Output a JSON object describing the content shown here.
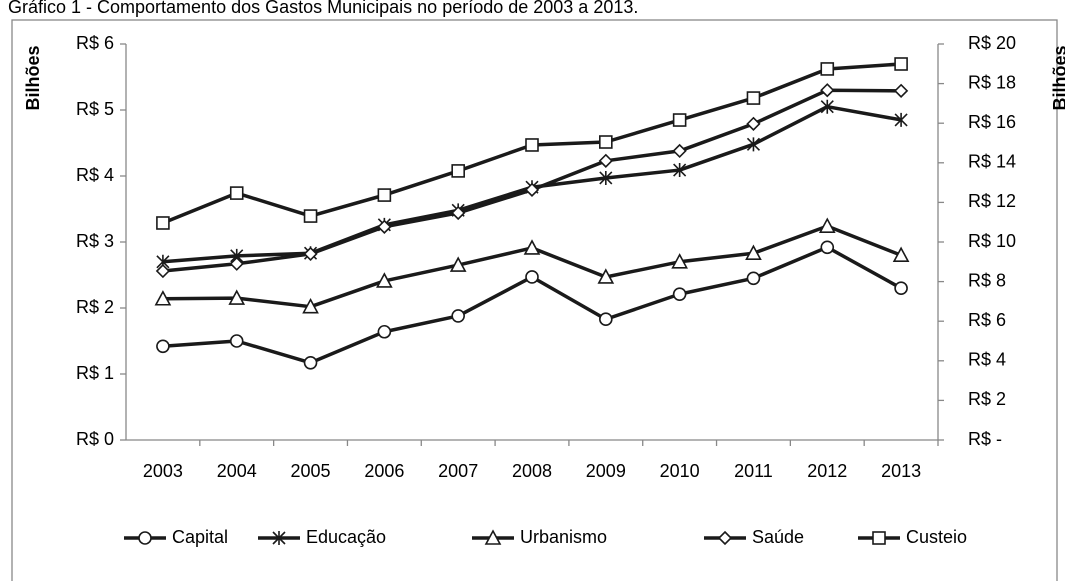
{
  "chart_data": {
    "type": "line",
    "title": "Gráfico 1 - Comportamento dos Gastos Municipais no período de 2003 a 2013.",
    "ylabel": "Bilhões",
    "y2label": "Bilhões",
    "categories": [
      "2003",
      "2004",
      "2005",
      "2006",
      "2007",
      "2008",
      "2009",
      "2010",
      "2011",
      "2012",
      "2013"
    ],
    "ylim": [
      0,
      6
    ],
    "yticks": [
      {
        "value": 0,
        "label": "R$ 0"
      },
      {
        "value": 1,
        "label": "R$ 1"
      },
      {
        "value": 2,
        "label": "R$ 2"
      },
      {
        "value": 3,
        "label": "R$ 3"
      },
      {
        "value": 4,
        "label": "R$ 4"
      },
      {
        "value": 5,
        "label": "R$ 5"
      },
      {
        "value": 6,
        "label": "R$ 6"
      }
    ],
    "y2lim": [
      0,
      20
    ],
    "y2ticks": [
      {
        "value": 0,
        "label": "R$ -"
      },
      {
        "value": 2,
        "label": "R$ 2"
      },
      {
        "value": 4,
        "label": "R$ 4"
      },
      {
        "value": 6,
        "label": "R$ 6"
      },
      {
        "value": 8,
        "label": "R$ 8"
      },
      {
        "value": 10,
        "label": "R$ 10"
      },
      {
        "value": 12,
        "label": "R$ 12"
      },
      {
        "value": 14,
        "label": "R$ 14"
      },
      {
        "value": 16,
        "label": "R$ 16"
      },
      {
        "value": 18,
        "label": "R$ 18"
      },
      {
        "value": 20,
        "label": "R$ 20"
      }
    ],
    "grid": false,
    "legend": "bottom",
    "series": [
      {
        "name": "Capital",
        "color": "#1a1a1a",
        "marker": "circle",
        "values": [
          1.42,
          1.5,
          1.17,
          1.64,
          1.88,
          2.47,
          1.83,
          2.21,
          2.45,
          2.92,
          2.3
        ]
      },
      {
        "name": "Educação",
        "color": "#1a1a1a",
        "marker": "star",
        "values": [
          2.7,
          2.79,
          2.83,
          3.26,
          3.48,
          3.83,
          3.97,
          4.09,
          4.48,
          5.05,
          4.85
        ]
      },
      {
        "name": "Urbanismo",
        "color": "#1a1a1a",
        "marker": "triangle",
        "values": [
          2.14,
          2.15,
          2.02,
          2.41,
          2.65,
          2.91,
          2.47,
          2.7,
          2.83,
          3.24,
          2.8
        ]
      },
      {
        "name": "Saúde",
        "color": "#1a1a1a",
        "marker": "diamond",
        "values": [
          2.56,
          2.67,
          2.82,
          3.23,
          3.44,
          3.79,
          4.23,
          4.38,
          4.79,
          5.3,
          5.29
        ]
      },
      {
        "name": "Custeio",
        "color": "#1a1a1a",
        "marker": "square",
        "axis": "y2",
        "values": [
          10.96,
          12.47,
          11.31,
          12.37,
          13.59,
          14.9,
          15.05,
          16.16,
          17.27,
          18.74,
          18.99
        ]
      }
    ]
  }
}
